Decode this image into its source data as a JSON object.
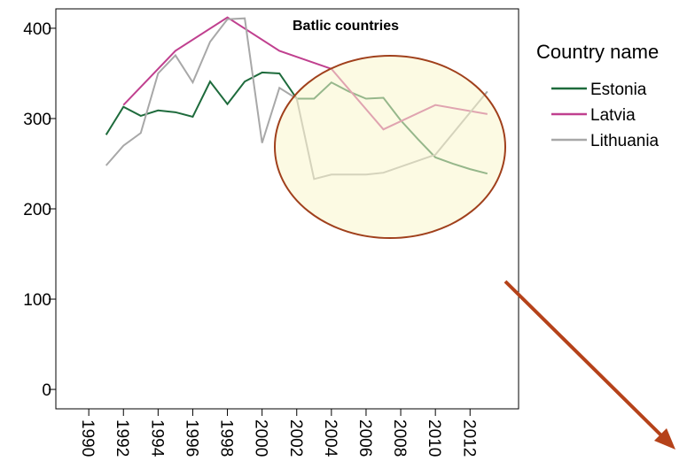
{
  "chart_data": {
    "type": "line",
    "title": "Batlic countries",
    "legend_title": "Country name",
    "legend": "right",
    "xlim": [
      1988.1,
      2014.8
    ],
    "xticks": [
      1990,
      1992,
      1994,
      1996,
      1998,
      2000,
      2002,
      2004,
      2006,
      2008,
      2010,
      2012
    ],
    "ylim": [
      -21.5,
      421.5
    ],
    "yticks": [
      0,
      100,
      200,
      300,
      400
    ],
    "series": [
      {
        "name": "Estonia",
        "color": "#1e6b3c",
        "x": [
          1991,
          1992,
          1993,
          1994,
          1995,
          1996,
          1997,
          1998,
          1999,
          2000,
          2001,
          2002,
          2003,
          2004,
          2005,
          2006,
          2007,
          2008,
          2009,
          2010,
          2011,
          2012,
          2013
        ],
        "values": [
          282,
          313,
          303,
          309,
          307,
          302,
          341,
          316,
          341,
          351,
          350,
          322,
          322,
          340,
          330,
          322,
          323,
          298,
          277,
          257,
          250,
          244,
          239
        ]
      },
      {
        "name": "Latvia",
        "color": "#c0408f",
        "x": [
          1992,
          1995,
          1998,
          2001,
          2004,
          2007,
          2010,
          2013
        ],
        "values": [
          315,
          375,
          412,
          375,
          355,
          288,
          315,
          305
        ]
      },
      {
        "name": "Lithuania",
        "color": "#a8a8a8",
        "x": [
          1991,
          1992,
          1993,
          1994,
          1995,
          1996,
          1997,
          1998,
          1999,
          2000,
          2001,
          2002,
          2003,
          2004,
          2005,
          2006,
          2007,
          2010,
          2013
        ],
        "values": [
          248,
          270,
          284,
          350,
          370,
          340,
          385,
          410,
          411,
          273,
          334,
          322,
          233,
          238,
          238,
          238,
          240,
          260,
          330
        ]
      }
    ]
  }
}
